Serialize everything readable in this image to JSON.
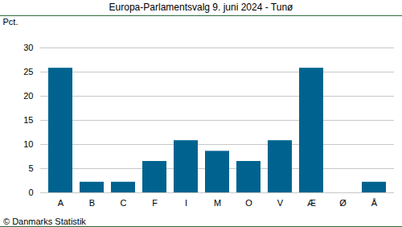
{
  "chart_data": {
    "type": "bar",
    "title": "Europa-Parlamentsvalg 9. juni 2024 - Tunø",
    "y_label": "Pct.",
    "caption": "© Danmarks Statistik",
    "categories": [
      "A",
      "B",
      "C",
      "F",
      "I",
      "M",
      "O",
      "V",
      "Æ",
      "Ø",
      "Å"
    ],
    "values": [
      25.8,
      2.2,
      2.2,
      6.5,
      10.8,
      8.6,
      6.5,
      10.8,
      25.8,
      0,
      2.2
    ],
    "color": "#00638f",
    "ylim": [
      0,
      30
    ],
    "yticks": [
      0,
      5,
      10,
      15,
      20,
      25,
      30
    ],
    "grid": true,
    "data_labels": false
  }
}
